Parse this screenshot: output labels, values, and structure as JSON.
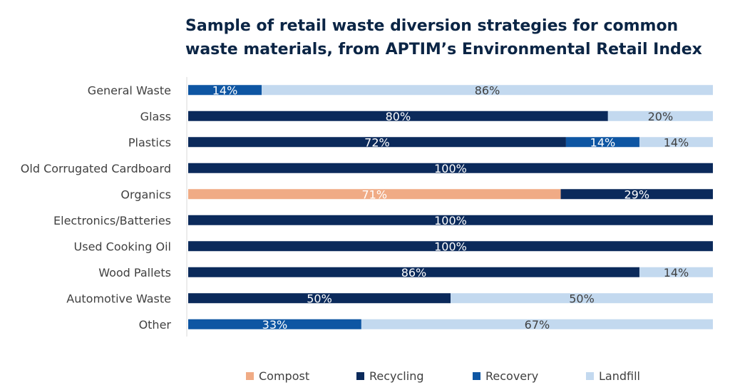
{
  "chart_data": {
    "type": "bar",
    "orientation": "horizontal",
    "stacked": "percent",
    "title": "Sample of retail waste diversion strategies for common waste materials, from APTIM’s Environmental Retail Index",
    "categories": [
      "General Waste",
      "Glass",
      "Plastics",
      "Old Corrugated Cardboard",
      "Organics",
      "Electronics/Batteries",
      "Used Cooking Oil",
      "Wood Pallets",
      "Automotive Waste",
      "Other"
    ],
    "series": [
      {
        "name": "Compost",
        "color": "#f0ab85",
        "label_color": "#ffffff",
        "values": [
          0,
          0,
          0,
          0,
          71,
          0,
          0,
          0,
          0,
          0
        ]
      },
      {
        "name": "Recycling",
        "color": "#0b2a5b",
        "label_color": "#ffffff",
        "values": [
          0,
          80,
          72,
          100,
          29,
          100,
          100,
          86,
          50,
          0
        ]
      },
      {
        "name": "Recovery",
        "color": "#0e56a3",
        "label_color": "#ffffff",
        "values": [
          14,
          0,
          14,
          0,
          0,
          0,
          0,
          0,
          0,
          33
        ]
      },
      {
        "name": "Landfill",
        "color": "#c3d9ef",
        "label_color": "#404040",
        "values": [
          86,
          20,
          14,
          0,
          0,
          0,
          0,
          14,
          50,
          67
        ]
      }
    ],
    "value_suffix": "%",
    "xlim": [
      0,
      100
    ],
    "xlabel": "",
    "ylabel": "",
    "grid": false,
    "legend": "bottom"
  }
}
